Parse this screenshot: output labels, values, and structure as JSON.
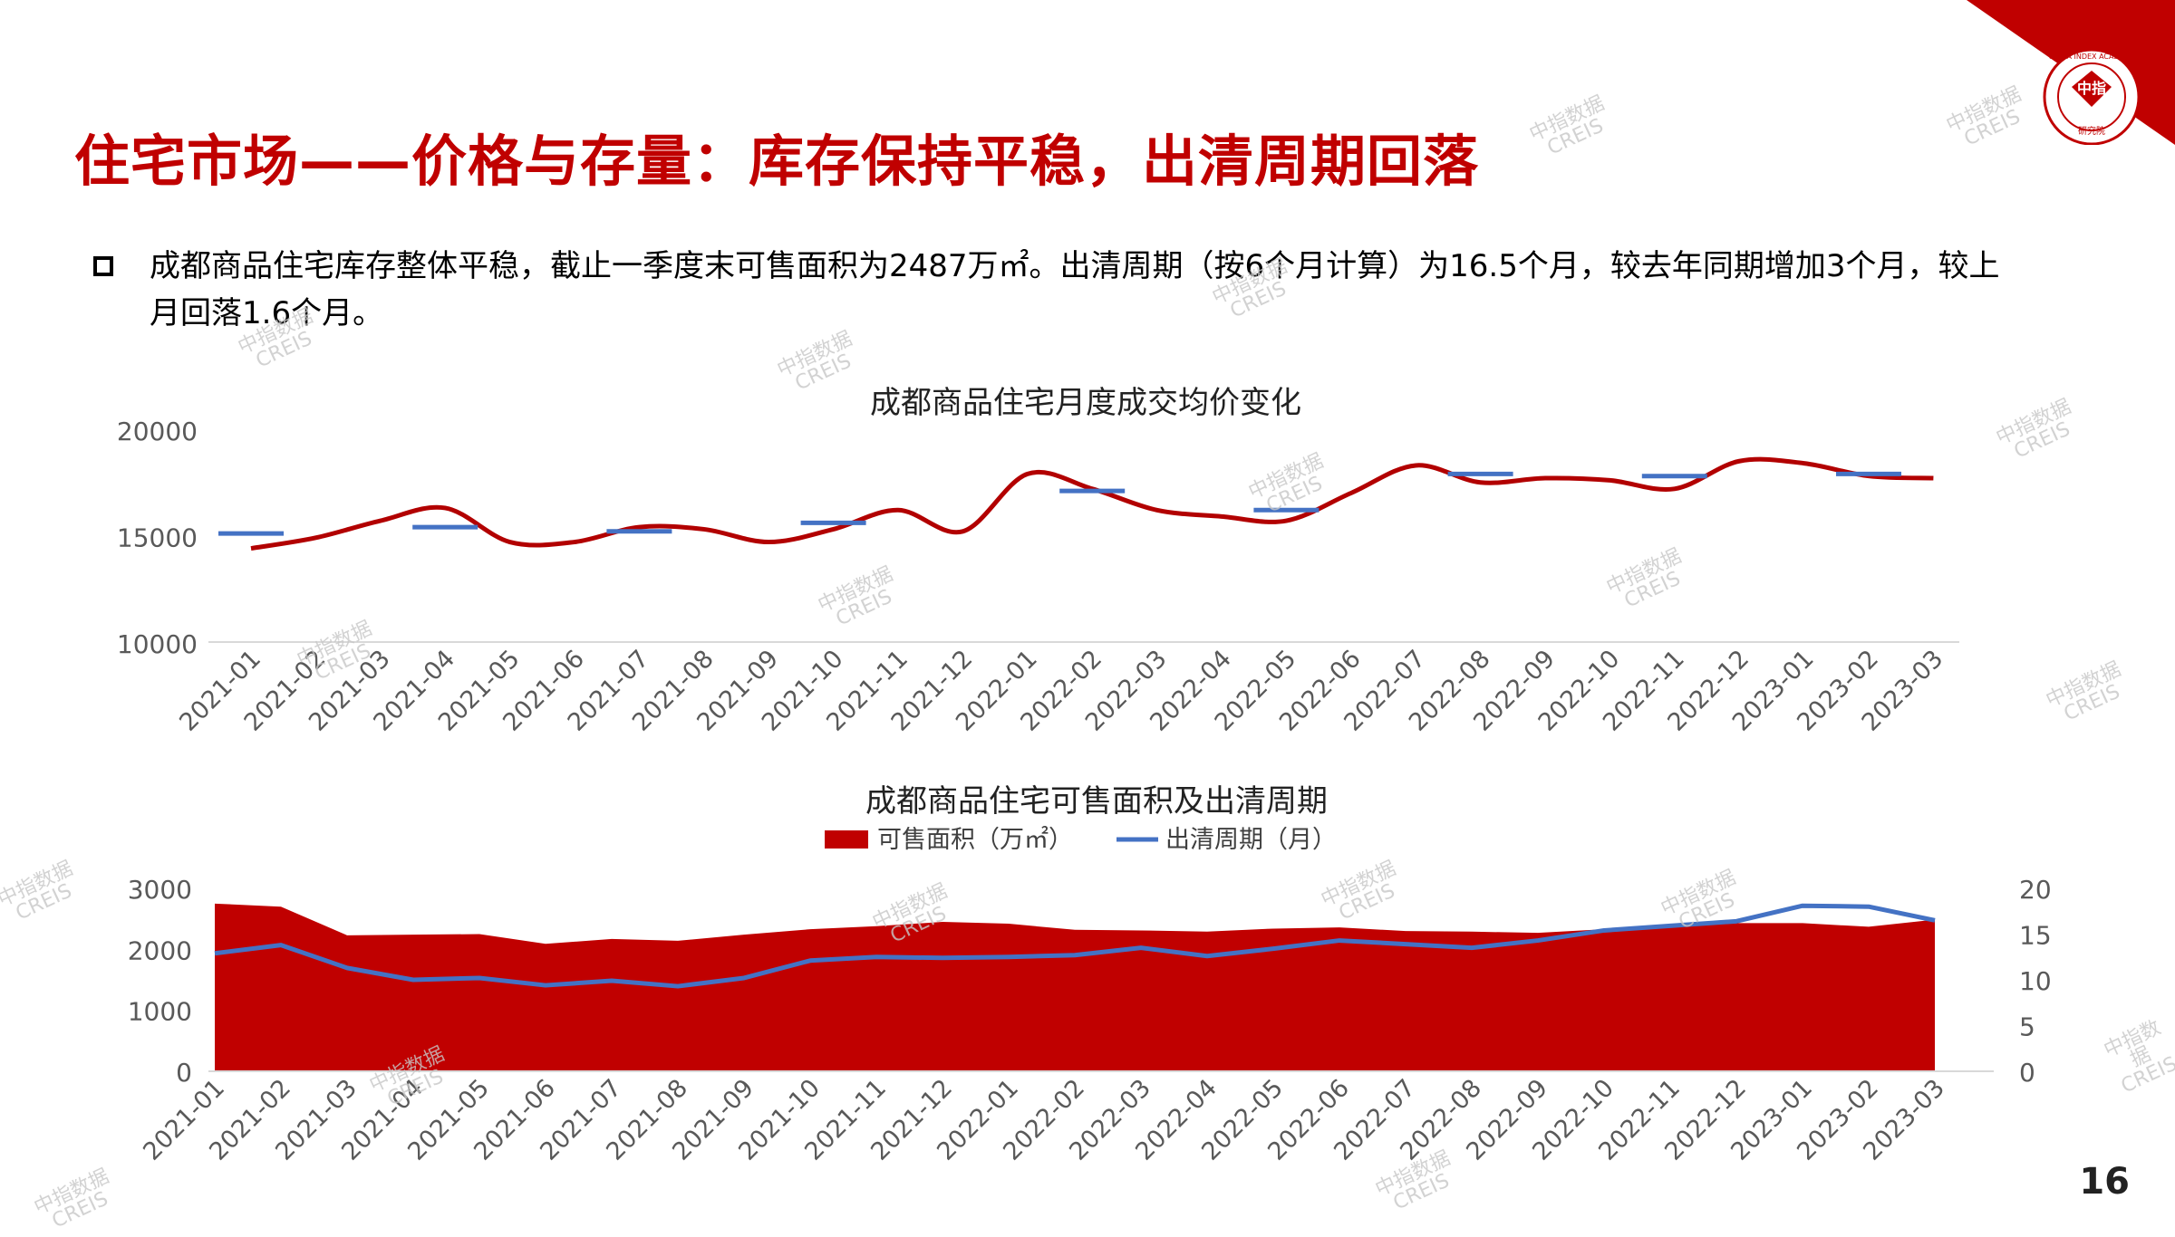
{
  "page": {
    "title": "住宅市场——价格与存量：库存保持平稳，出清周期回落",
    "bullet": "成都商品住宅库存整体平稳，截止一季度末可售面积为2487万㎡。出清周期（按6个月计算）为16.5个月，较去年同期增加3个月，较上月回落1.6个月。",
    "page_number": "16",
    "logo": {
      "text_main": "中指",
      "text_ring": "CHINA INDEX ACADEMY",
      "text_bottom": "研究院"
    },
    "watermark": {
      "line1": "中指数据",
      "line2": "CREIS"
    },
    "colors": {
      "brand_red": "#c00000",
      "line_blue": "#4472c4",
      "price_line": "#b20000"
    }
  },
  "chart_data": [
    {
      "type": "line",
      "title": "成都商品住宅月度成交均价变化",
      "categories": [
        "2021-01",
        "2021-02",
        "2021-03",
        "2021-04",
        "2021-05",
        "2021-06",
        "2021-07",
        "2021-08",
        "2021-09",
        "2021-10",
        "2021-11",
        "2021-12",
        "2022-01",
        "2022-02",
        "2022-03",
        "2022-04",
        "2022-05",
        "2022-06",
        "2022-07",
        "2022-08",
        "2022-09",
        "2022-10",
        "2022-11",
        "2022-12",
        "2023-01",
        "2023-02",
        "2023-03"
      ],
      "series": [
        {
          "type": "line",
          "color": "#b20000",
          "values": [
            14400,
            14900,
            15700,
            16300,
            14700,
            14700,
            15400,
            15300,
            14700,
            15300,
            16200,
            15200,
            17900,
            17200,
            16200,
            15900,
            15700,
            17000,
            18300,
            17500,
            17700,
            17600,
            17200,
            18500,
            18400,
            17800,
            17700
          ]
        },
        {
          "type": "marker-dash",
          "color": "#4472c4",
          "points": [
            [
              "2021-01",
              15100
            ],
            [
              "2021-04",
              15400
            ],
            [
              "2021-07",
              15200
            ],
            [
              "2021-10",
              15600
            ],
            [
              "2022-02",
              17100
            ],
            [
              "2022-05",
              16200
            ],
            [
              "2022-08",
              17900
            ],
            [
              "2022-11",
              17800
            ],
            [
              "2023-02",
              17900
            ]
          ]
        }
      ],
      "yticks": [
        "20000",
        "15000",
        "10000"
      ],
      "ylim": [
        10000,
        20000
      ],
      "grid": false
    },
    {
      "type": "area",
      "title": "成都商品住宅可售面积及出清周期",
      "categories": [
        "2021-01",
        "2021-02",
        "2021-03",
        "2021-04",
        "2021-05",
        "2021-06",
        "2021-07",
        "2021-08",
        "2021-09",
        "2021-10",
        "2021-11",
        "2021-12",
        "2022-01",
        "2022-02",
        "2022-03",
        "2022-04",
        "2022-05",
        "2022-06",
        "2022-07",
        "2022-08",
        "2022-09",
        "2022-10",
        "2022-11",
        "2022-12",
        "2023-01",
        "2023-02",
        "2023-03"
      ],
      "legend": [
        "可售面积（万㎡）",
        "出清周期（月）"
      ],
      "series": [
        {
          "name": "可售面积（万㎡）",
          "type": "area",
          "axis": "left",
          "color": "#c00000",
          "values": [
            2750,
            2700,
            2230,
            2240,
            2250,
            2090,
            2170,
            2140,
            2240,
            2330,
            2380,
            2450,
            2420,
            2320,
            2310,
            2290,
            2340,
            2360,
            2300,
            2290,
            2270,
            2330,
            2380,
            2430,
            2430,
            2370,
            2487
          ]
        },
        {
          "name": "出清周期（月）",
          "type": "line",
          "axis": "right",
          "color": "#4472c4",
          "values": [
            12.9,
            13.8,
            11.3,
            10.0,
            10.2,
            9.4,
            9.9,
            9.3,
            10.2,
            12.1,
            12.5,
            12.4,
            12.5,
            12.7,
            13.5,
            12.6,
            13.4,
            14.3,
            13.9,
            13.5,
            14.3,
            15.4,
            15.9,
            16.4,
            18.1,
            18.0,
            16.5
          ]
        }
      ],
      "yticks_left": [
        "3000",
        "2000",
        "1000",
        "0"
      ],
      "yticks_right": [
        "20",
        "15",
        "10",
        "5",
        "0"
      ],
      "ylim_left": [
        0,
        3000
      ],
      "ylim_right": [
        0,
        20
      ]
    }
  ]
}
